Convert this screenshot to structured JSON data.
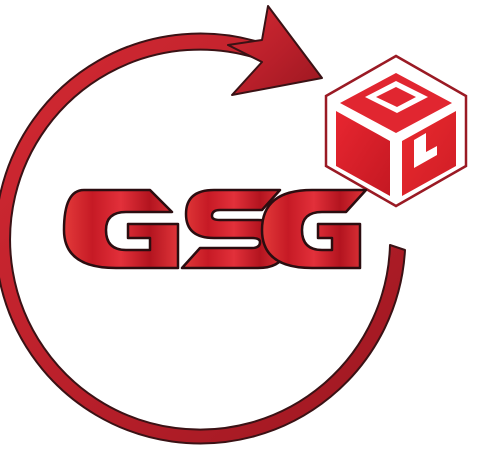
{
  "logo": {
    "wordmark": "GSG",
    "colors": {
      "primary_red": "#d81f2a",
      "dark_red": "#a3151d",
      "outline": "#3a1215",
      "box_frame": "#9a1a24",
      "background": "#ffffff"
    },
    "icons": [
      "circular-arrow-icon",
      "package-box-icon"
    ]
  }
}
